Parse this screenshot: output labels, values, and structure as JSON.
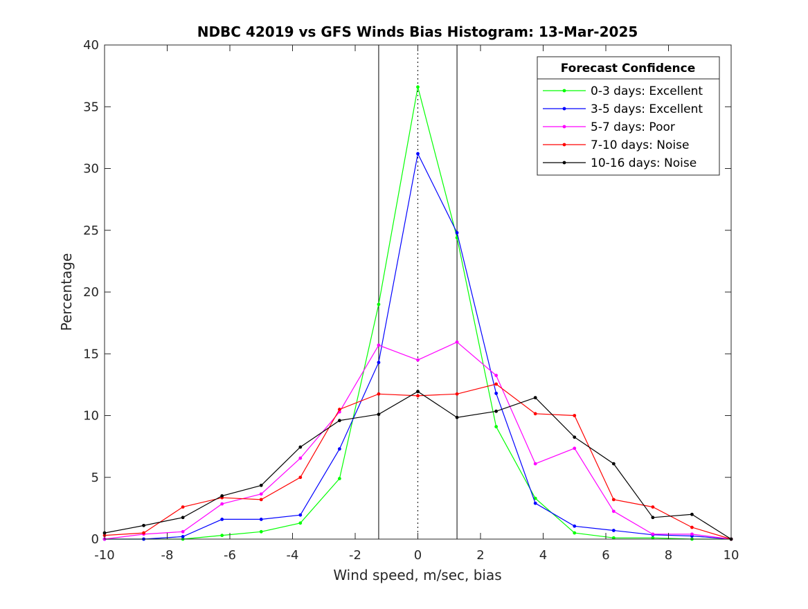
{
  "chart_data": {
    "type": "line",
    "title": "NDBC 42019 vs GFS Winds Bias Histogram: 13-Mar-2025",
    "xlabel": "Wind speed, m/sec, bias",
    "ylabel": "Percentage",
    "xlim": [
      -10,
      10
    ],
    "ylim": [
      0,
      40
    ],
    "xticks": [
      -10,
      -8,
      -6,
      -4,
      -2,
      0,
      2,
      4,
      6,
      8,
      10
    ],
    "yticks": [
      0,
      5,
      10,
      15,
      20,
      25,
      30,
      35,
      40
    ],
    "grid": false,
    "legend": {
      "title": "Forecast Confidence",
      "placement": "top-right"
    },
    "reference_lines": [
      {
        "x": -1.25,
        "style": "solid",
        "color": "#000000"
      },
      {
        "x": 0,
        "style": "dotted",
        "color": "#000000"
      },
      {
        "x": 1.25,
        "style": "solid",
        "color": "#000000"
      }
    ],
    "x": [
      -10,
      -8.75,
      -7.5,
      -6.25,
      -5,
      -3.75,
      -2.5,
      -1.25,
      0,
      1.25,
      2.5,
      3.75,
      5,
      6.25,
      7.5,
      8.75,
      10
    ],
    "series": [
      {
        "name": "0-3 days: Excellent",
        "color": "#00ff00",
        "values": [
          0,
          0,
          0,
          0.3,
          0.6,
          1.3,
          4.9,
          19.0,
          36.6,
          24.4,
          9.1,
          3.3,
          0.5,
          0.1,
          0.1,
          0,
          0
        ]
      },
      {
        "name": "3-5 days: Excellent",
        "color": "#0000ff",
        "values": [
          0,
          0,
          0.2,
          1.6,
          1.6,
          1.95,
          7.3,
          14.3,
          31.2,
          24.8,
          11.8,
          2.9,
          1.05,
          0.7,
          0.35,
          0.25,
          0
        ]
      },
      {
        "name": "5-7 days: Poor",
        "color": "#ff00ff",
        "values": [
          0,
          0.4,
          0.6,
          2.85,
          3.65,
          6.55,
          10.3,
          15.7,
          14.5,
          15.95,
          13.25,
          6.1,
          7.35,
          2.25,
          0.4,
          0.4,
          0
        ]
      },
      {
        "name": "7-10 days: Noise",
        "color": "#ff0000",
        "values": [
          0.3,
          0.5,
          2.6,
          3.35,
          3.2,
          5.0,
          10.5,
          11.75,
          11.6,
          11.75,
          12.55,
          10.15,
          10.0,
          3.2,
          2.6,
          0.95,
          0
        ]
      },
      {
        "name": "10-16 days: Noise",
        "color": "#000000",
        "values": [
          0.5,
          1.1,
          1.75,
          3.5,
          4.35,
          7.45,
          9.6,
          10.1,
          11.95,
          9.85,
          10.35,
          11.45,
          8.25,
          6.1,
          1.75,
          2.0,
          0
        ]
      }
    ]
  }
}
